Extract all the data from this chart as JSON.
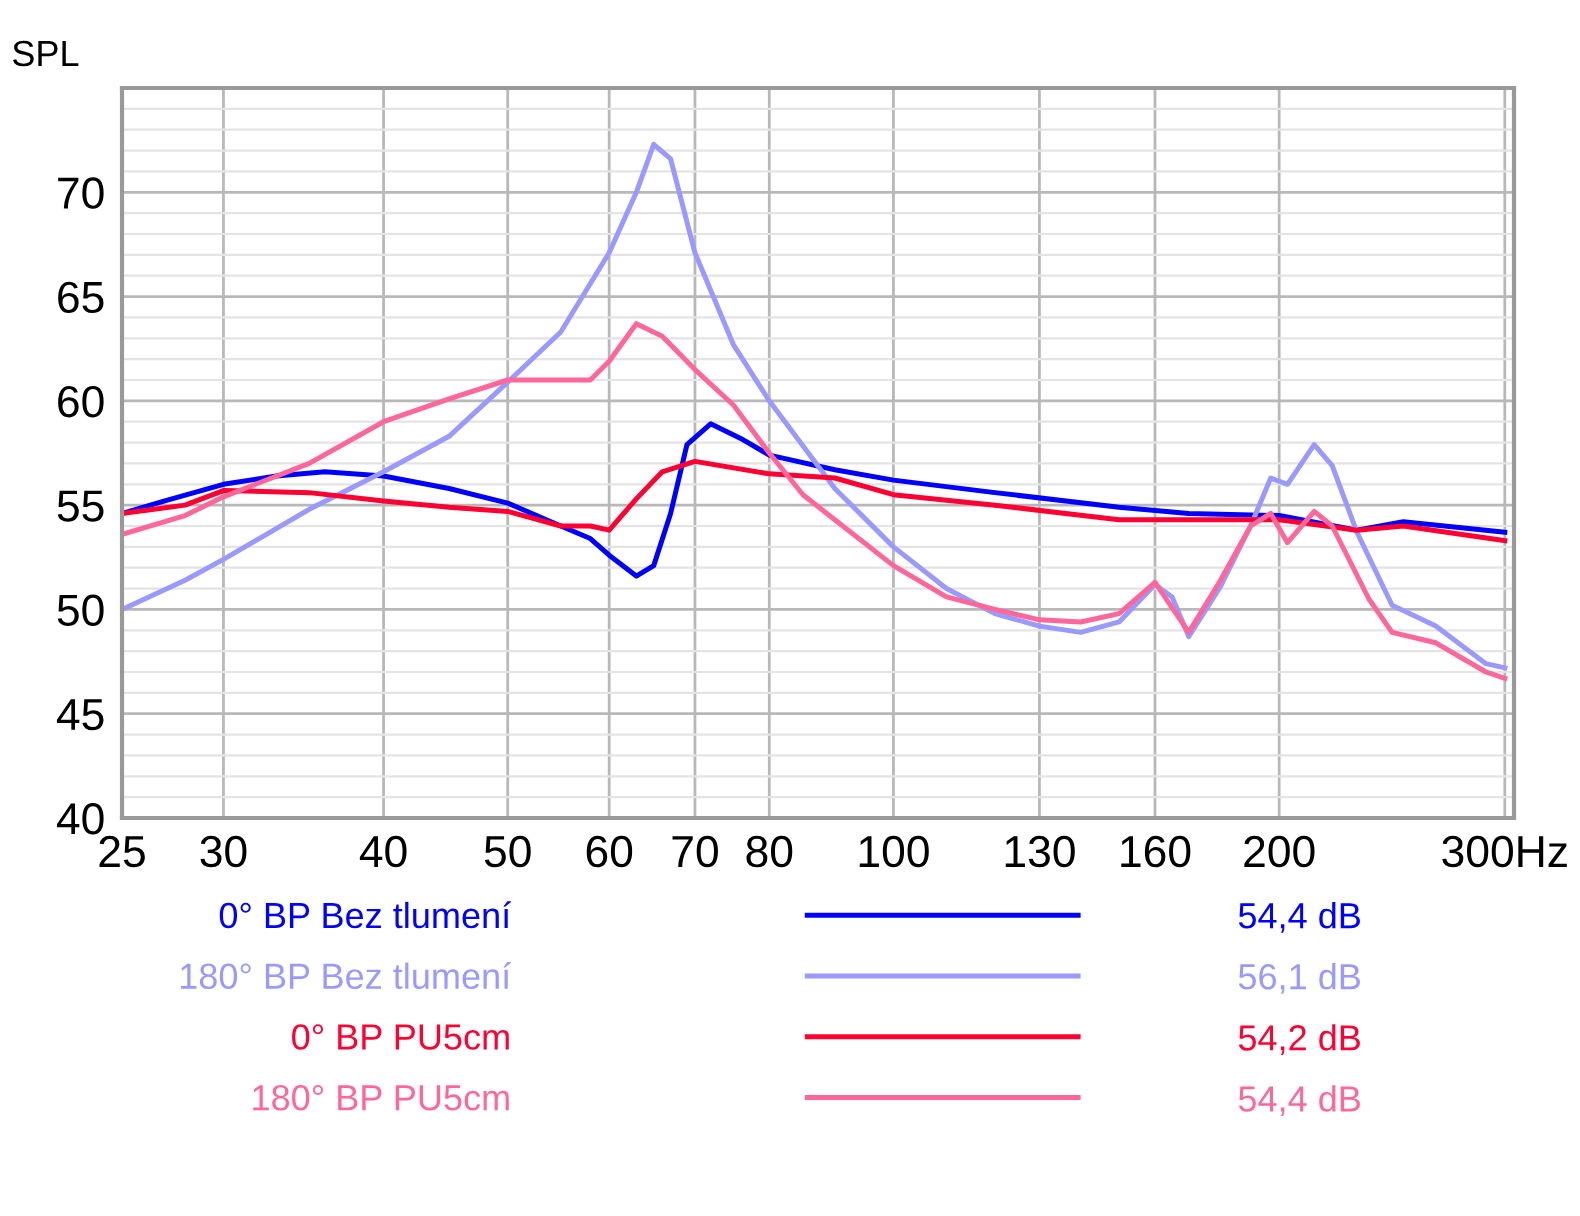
{
  "chart_data": {
    "type": "line",
    "ylabel": "SPL",
    "log": "x",
    "xlim": [
      25,
      305
    ],
    "xticks": [
      25,
      30,
      40,
      50,
      60,
      70,
      80,
      100,
      130,
      160,
      200,
      {
        "value": 300,
        "label": "300Hz"
      }
    ],
    "ylim": [
      40,
      75
    ],
    "yticks": [
      40,
      45,
      50,
      55,
      60,
      65,
      70
    ],
    "grid": true,
    "legend": "bottom",
    "line_style": "solid",
    "marker": "none",
    "series": [
      {
        "name": "0° BP Bez tlumení",
        "color": "#0000ff",
        "x": [
          25,
          27,
          30,
          33,
          36,
          40,
          45,
          50,
          55,
          58,
          60,
          63,
          65,
          67,
          69,
          72,
          76,
          80,
          90,
          100,
          120,
          150,
          170,
          200,
          230,
          250,
          300
        ],
        "values": [
          54.6,
          55.2,
          56.0,
          56.4,
          56.6,
          56.4,
          55.8,
          55.1,
          54.0,
          53.4,
          52.6,
          51.6,
          52.1,
          54.6,
          57.9,
          58.9,
          58.2,
          57.4,
          56.7,
          56.2,
          55.6,
          54.9,
          54.6,
          54.5,
          53.8,
          54.2,
          53.7
        ]
      },
      {
        "name": "180° BP Bez tlumení",
        "color": "#9999ff",
        "x": [
          25,
          28,
          30,
          35,
          40,
          45,
          50,
          55,
          60,
          63,
          65,
          67,
          70,
          75,
          80,
          90,
          100,
          110,
          120,
          130,
          140,
          150,
          160,
          165,
          170,
          180,
          190,
          197,
          203,
          213,
          220,
          230,
          245,
          265,
          290,
          300
        ],
        "values": [
          50.0,
          51.4,
          52.4,
          54.8,
          56.6,
          58.3,
          60.9,
          63.3,
          67.1,
          70.0,
          72.3,
          71.6,
          67.1,
          62.7,
          60.0,
          55.8,
          53.0,
          51.0,
          49.8,
          49.2,
          48.9,
          49.4,
          51.2,
          50.6,
          48.7,
          51.1,
          54.0,
          56.3,
          56.0,
          57.9,
          56.9,
          53.7,
          50.2,
          49.2,
          47.4,
          47.2
        ]
      },
      {
        "name": "0° BP PU5cm",
        "color": "#ff0033",
        "x": [
          25,
          28,
          30,
          35,
          40,
          45,
          50,
          55,
          58,
          60,
          63,
          66,
          70,
          80,
          90,
          100,
          120,
          150,
          200,
          230,
          250,
          300
        ],
        "values": [
          54.6,
          55.0,
          55.7,
          55.6,
          55.2,
          54.9,
          54.7,
          54.0,
          54.0,
          53.8,
          55.3,
          56.6,
          57.1,
          56.5,
          56.3,
          55.5,
          55.0,
          54.3,
          54.3,
          53.8,
          54.0,
          53.3
        ]
      },
      {
        "name": "180° BP PU5cm",
        "color": "#ff6699",
        "x": [
          25,
          28,
          30,
          35,
          40,
          45,
          50,
          55,
          58,
          60,
          63,
          66,
          70,
          75,
          80,
          85,
          90,
          100,
          110,
          120,
          130,
          140,
          150,
          160,
          170,
          180,
          190,
          197,
          203,
          213,
          220,
          235,
          245,
          265,
          290,
          300
        ],
        "values": [
          53.6,
          54.5,
          55.4,
          57.0,
          59.0,
          60.1,
          61.0,
          61.0,
          61.0,
          61.9,
          63.7,
          63.1,
          61.5,
          59.8,
          57.5,
          55.5,
          54.3,
          52.1,
          50.6,
          50.0,
          49.5,
          49.4,
          49.8,
          51.3,
          48.9,
          51.4,
          54.0,
          54.6,
          53.2,
          54.7,
          54.0,
          50.5,
          48.9,
          48.4,
          47.0,
          46.7
        ]
      }
    ],
    "annotations": [
      "54,4 dB",
      "56,1 dB",
      "54,2 dB",
      "54,4 dB"
    ]
  }
}
